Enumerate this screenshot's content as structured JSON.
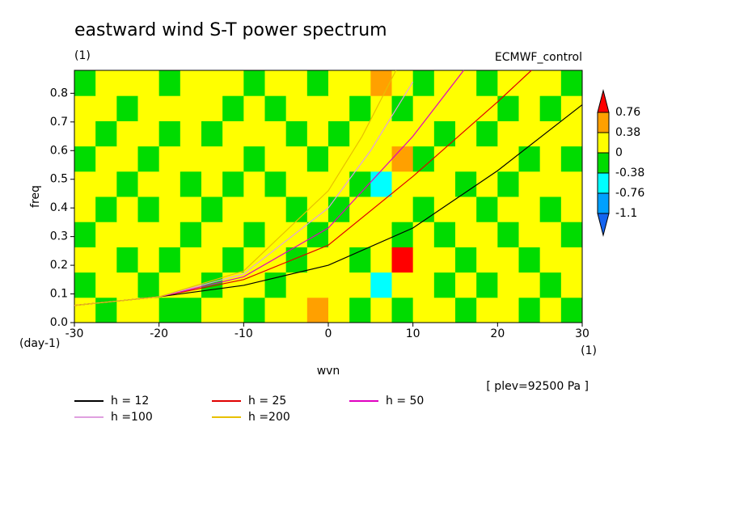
{
  "chart_data": {
    "type": "contourf",
    "title": "eastward wind S-T power spectrum",
    "subtitle": "(1)",
    "annotation": "ECMWF_control",
    "xlabel": "wvn",
    "ylabel": "freq",
    "yunit": "(day-1)",
    "xunit": "(1)",
    "footnote": "[ plev=92500 Pa ]",
    "xlim": [
      -30,
      30
    ],
    "ylim": [
      0,
      0.88
    ],
    "xticks": [
      -30,
      -20,
      -10,
      0,
      10,
      20,
      30
    ],
    "yticks": [
      0.0,
      0.1,
      0.2,
      0.3,
      0.4,
      0.5,
      0.6,
      0.7,
      0.8
    ],
    "levels": [
      -1.1,
      -0.76,
      -0.38,
      0,
      0.38,
      0.76
    ],
    "colors": [
      "#1464f0",
      "#00a0ff",
      "#00ffff",
      "#00dc00",
      "#ffff00",
      "#ffa000",
      "#ff0000"
    ],
    "z": [
      [
        0.1,
        -0.1,
        0.1,
        0.1,
        -0.1,
        -0.1,
        0.1,
        0.1,
        -0.1,
        0.1,
        0.1,
        0.5,
        0.1,
        -0.1,
        0.1,
        -0.1,
        0.1,
        0.1,
        -0.1,
        0.1,
        0.1,
        -0.1,
        0.1,
        -0.1
      ],
      [
        -0.1,
        0.1,
        0.1,
        -0.1,
        0.1,
        0.1,
        -0.1,
        0.1,
        0.1,
        -0.1,
        0.1,
        0.1,
        0.1,
        0.1,
        -0.5,
        0.1,
        0.1,
        -0.1,
        0.1,
        -0.1,
        0.1,
        0.1,
        -0.1,
        0.1
      ],
      [
        0.1,
        0.1,
        -0.1,
        0.1,
        -0.1,
        0.1,
        0.1,
        -0.1,
        0.1,
        0.1,
        -0.1,
        0.1,
        0.1,
        -0.1,
        0.1,
        0.9,
        0.1,
        0.1,
        -0.1,
        0.1,
        0.1,
        -0.1,
        0.1,
        0.1
      ],
      [
        -0.1,
        0.1,
        0.1,
        0.1,
        0.1,
        -0.1,
        0.1,
        0.1,
        -0.1,
        0.1,
        0.1,
        -0.1,
        0.1,
        0.1,
        0.1,
        -0.1,
        0.1,
        -0.1,
        0.1,
        0.1,
        -0.1,
        0.1,
        0.1,
        -0.1
      ],
      [
        0.1,
        -0.1,
        0.1,
        -0.1,
        0.1,
        0.1,
        -0.1,
        0.1,
        0.1,
        0.1,
        -0.1,
        0.1,
        -0.1,
        0.1,
        0.1,
        0.1,
        -0.1,
        0.1,
        0.1,
        -0.1,
        0.1,
        0.1,
        -0.1,
        0.1
      ],
      [
        0.1,
        0.1,
        -0.1,
        0.1,
        0.1,
        -0.1,
        0.1,
        -0.1,
        0.1,
        -0.1,
        0.1,
        0.1,
        0.1,
        -0.1,
        -0.5,
        0.1,
        0.1,
        0.1,
        -0.1,
        0.1,
        -0.1,
        0.1,
        0.1,
        0.1
      ],
      [
        -0.1,
        0.1,
        0.1,
        -0.1,
        0.1,
        0.1,
        0.1,
        0.1,
        -0.1,
        0.1,
        0.1,
        -0.1,
        0.1,
        0.1,
        0.1,
        0.5,
        -0.1,
        0.1,
        0.1,
        0.1,
        0.1,
        -0.1,
        0.1,
        -0.1
      ],
      [
        0.1,
        -0.1,
        0.1,
        0.1,
        -0.1,
        0.1,
        -0.1,
        0.1,
        0.1,
        0.1,
        -0.1,
        0.1,
        -0.1,
        0.1,
        0.1,
        0.1,
        0.1,
        -0.1,
        0.1,
        -0.1,
        0.1,
        0.1,
        0.1,
        0.1
      ],
      [
        0.1,
        0.1,
        -0.1,
        0.1,
        0.1,
        0.1,
        0.1,
        -0.1,
        0.1,
        -0.1,
        0.1,
        0.1,
        0.1,
        -0.1,
        0.1,
        -0.1,
        0.1,
        0.1,
        0.1,
        0.1,
        -0.1,
        0.1,
        -0.1,
        0.1
      ],
      [
        -0.1,
        0.1,
        0.1,
        0.1,
        -0.1,
        0.1,
        0.1,
        0.1,
        -0.1,
        0.1,
        0.1,
        -0.1,
        0.1,
        0.1,
        0.5,
        0.1,
        -0.1,
        0.1,
        0.1,
        -0.1,
        0.1,
        0.1,
        0.1,
        -0.1
      ]
    ],
    "series": [
      {
        "name": "h = 12",
        "color": "#000000",
        "x": [
          -30,
          -20,
          -10,
          0,
          10,
          20,
          30
        ],
        "values": [
          0.06,
          0.09,
          0.13,
          0.2,
          0.33,
          0.53,
          0.76
        ]
      },
      {
        "name": "h = 25",
        "color": "#e00000",
        "x": [
          -30,
          -20,
          -10,
          0,
          10,
          20,
          24
        ],
        "values": [
          0.06,
          0.09,
          0.15,
          0.27,
          0.51,
          0.77,
          0.88
        ]
      },
      {
        "name": "h = 50",
        "color": "#e000c0",
        "x": [
          -30,
          -20,
          -10,
          0,
          10,
          16
        ],
        "values": [
          0.06,
          0.09,
          0.16,
          0.33,
          0.65,
          0.88
        ]
      },
      {
        "name": "h =100",
        "color": "#e0a0e0",
        "x": [
          -30,
          -20,
          -10,
          0,
          5,
          10
        ],
        "values": [
          0.06,
          0.09,
          0.17,
          0.4,
          0.6,
          0.84
        ]
      },
      {
        "name": "h =200",
        "color": "#e8c000",
        "x": [
          -30,
          -20,
          -10,
          0,
          4,
          8
        ],
        "values": [
          0.06,
          0.09,
          0.18,
          0.46,
          0.65,
          0.88
        ]
      }
    ]
  }
}
